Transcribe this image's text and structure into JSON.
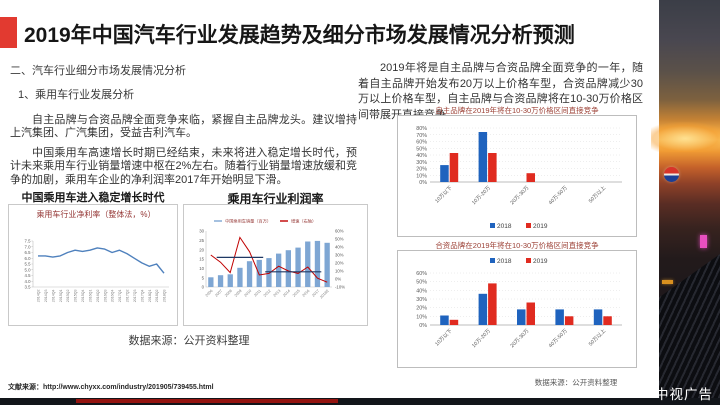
{
  "page": {
    "title": "2019年中国汽车行业发展趋势及细分市场发展情况分析预测",
    "reference_label": "文献来源：http://www.chyxx.com/industry/201905/739455.html",
    "watermark": "中视广告"
  },
  "colors": {
    "accent_red": "#e23a30",
    "title_text": "#161616",
    "body_text": "#333333",
    "chart_inner_title": "#943634",
    "axis_text": "#595959",
    "series_2018_blue": "#1f63be",
    "series_2019_red": "#e02b20"
  },
  "left": {
    "section_heading": "二、汽车行业细分市场发展情况分析",
    "sub_heading": "1、乘用车行业发展分析",
    "para1": "自主品牌与合资品牌全面竞争来临，紧握自主品牌龙头。建议增持上汽集团、广汽集团，受益吉利汽车。",
    "para2": "中国乘用车高速增长时期已经结束，未来将进入稳定增长时代，预计未来乘用车行业销量增速中枢在2%左右。随着行业销量增速放缓和竞争的加剧，乘用车企业的净利润率2017年开始明显下滑。",
    "source_note": "数据来源：公开资料整理"
  },
  "right": {
    "para": "2019年将是自主品牌与合资品牌全面竞争的一年，随着自主品牌开始发布20万以上价格车型，合资品牌减少30万以上价格车型，自主品牌与合资品牌将在10-30万价格区间带展开直接竞争。",
    "source_note": "数据来源：公开资料整理"
  },
  "chart_data": [
    {
      "id": "net-margin-line",
      "type": "line",
      "title": "中国乘用车进入稳定增长时代",
      "inner_title": "乘用车行业净利率（整体法，%）",
      "x": [
        "2014Q2",
        "2014Q3",
        "2014Q4",
        "2015Q1",
        "2015Q2",
        "2015Q3",
        "2015Q4",
        "2016Q1",
        "2016Q2",
        "2016Q3",
        "2016Q4",
        "2017Q1",
        "2017Q2",
        "2017Q3",
        "2017Q4",
        "2018Q1",
        "2018Q2",
        "2018Q3"
      ],
      "values": [
        6.2,
        6.2,
        6.1,
        6.2,
        6.5,
        6.7,
        6.6,
        6.7,
        6.9,
        6.8,
        6.5,
        6.7,
        6.4,
        6.0,
        5.6,
        5.3,
        5.5,
        4.7
      ],
      "ylim": [
        3.5,
        7.5
      ],
      "yticks": [
        7.5,
        7.0,
        6.5,
        6.0,
        5.5,
        5.0,
        4.5,
        4.0,
        3.5
      ],
      "line_color": "#4f81bd",
      "grid": false
    },
    {
      "id": "sales-growth-combo",
      "type": "bar+line",
      "title": "乘用车行业利润率",
      "legend": [
        "中国乘用车销量（百万）",
        "增速（右轴）"
      ],
      "x": [
        "2006",
        "2007",
        "2008",
        "2009",
        "2010",
        "2011",
        "2012",
        "2013",
        "2014",
        "2015",
        "2016",
        "2017",
        "2018E"
      ],
      "bars": [
        5.2,
        6.3,
        6.8,
        10.3,
        13.8,
        14.5,
        15.5,
        17.9,
        19.7,
        21.1,
        24.4,
        24.7,
        23.7
      ],
      "line": [
        30,
        21,
        8,
        52,
        34,
        5,
        7,
        16,
        10,
        7,
        15,
        1,
        -4
      ],
      "left_ylim": [
        0,
        30
      ],
      "left_yticks": [
        0,
        5,
        10,
        15,
        20,
        25,
        30
      ],
      "right_ylim": [
        -10,
        60
      ],
      "right_yticks": [
        60,
        50,
        40,
        30,
        20,
        10,
        0,
        -10
      ],
      "bar_color": "#7ea6d3",
      "line_color": "#c00000",
      "avg_color": "#1f3864",
      "avg_segments": [
        {
          "from": 1,
          "to": 5,
          "value": 27
        },
        {
          "from": 6,
          "to": 11,
          "value": 9
        }
      ],
      "legend_position": "top"
    },
    {
      "id": "own-brand-price-bands",
      "type": "bar",
      "title": "自主品牌在2019年将在10-30万价格区间直接竞争",
      "categories": [
        "10万以下",
        "10万-20万",
        "20万-30万",
        "40万-50万",
        "50万以上"
      ],
      "series": [
        {
          "name": "2018",
          "color": "#1f63be",
          "values": [
            25,
            74,
            0,
            0,
            0
          ]
        },
        {
          "name": "2019",
          "color": "#e02b20",
          "values": [
            43,
            43,
            13,
            0,
            0
          ]
        }
      ],
      "ylim": [
        0,
        80
      ],
      "yticks": [
        0,
        10,
        20,
        30,
        40,
        50,
        60,
        70,
        80
      ],
      "legend_position": "bottom",
      "grid": true
    },
    {
      "id": "joint-venture-price-bands",
      "type": "bar",
      "title": "合资品牌在2019年将在10-30万价格区间直接竞争",
      "categories": [
        "10万以下",
        "10万-20万",
        "20万-30万",
        "40万-50万",
        "50万以上"
      ],
      "series": [
        {
          "name": "2018",
          "color": "#1f63be",
          "values": [
            11,
            36,
            18,
            18,
            18
          ]
        },
        {
          "name": "2019",
          "color": "#e02b20",
          "values": [
            6,
            48,
            26,
            10,
            10
          ]
        }
      ],
      "ylim": [
        0,
        60
      ],
      "yticks": [
        0,
        10,
        20,
        30,
        40,
        50,
        60
      ],
      "legend_position": "top",
      "grid": true
    }
  ]
}
